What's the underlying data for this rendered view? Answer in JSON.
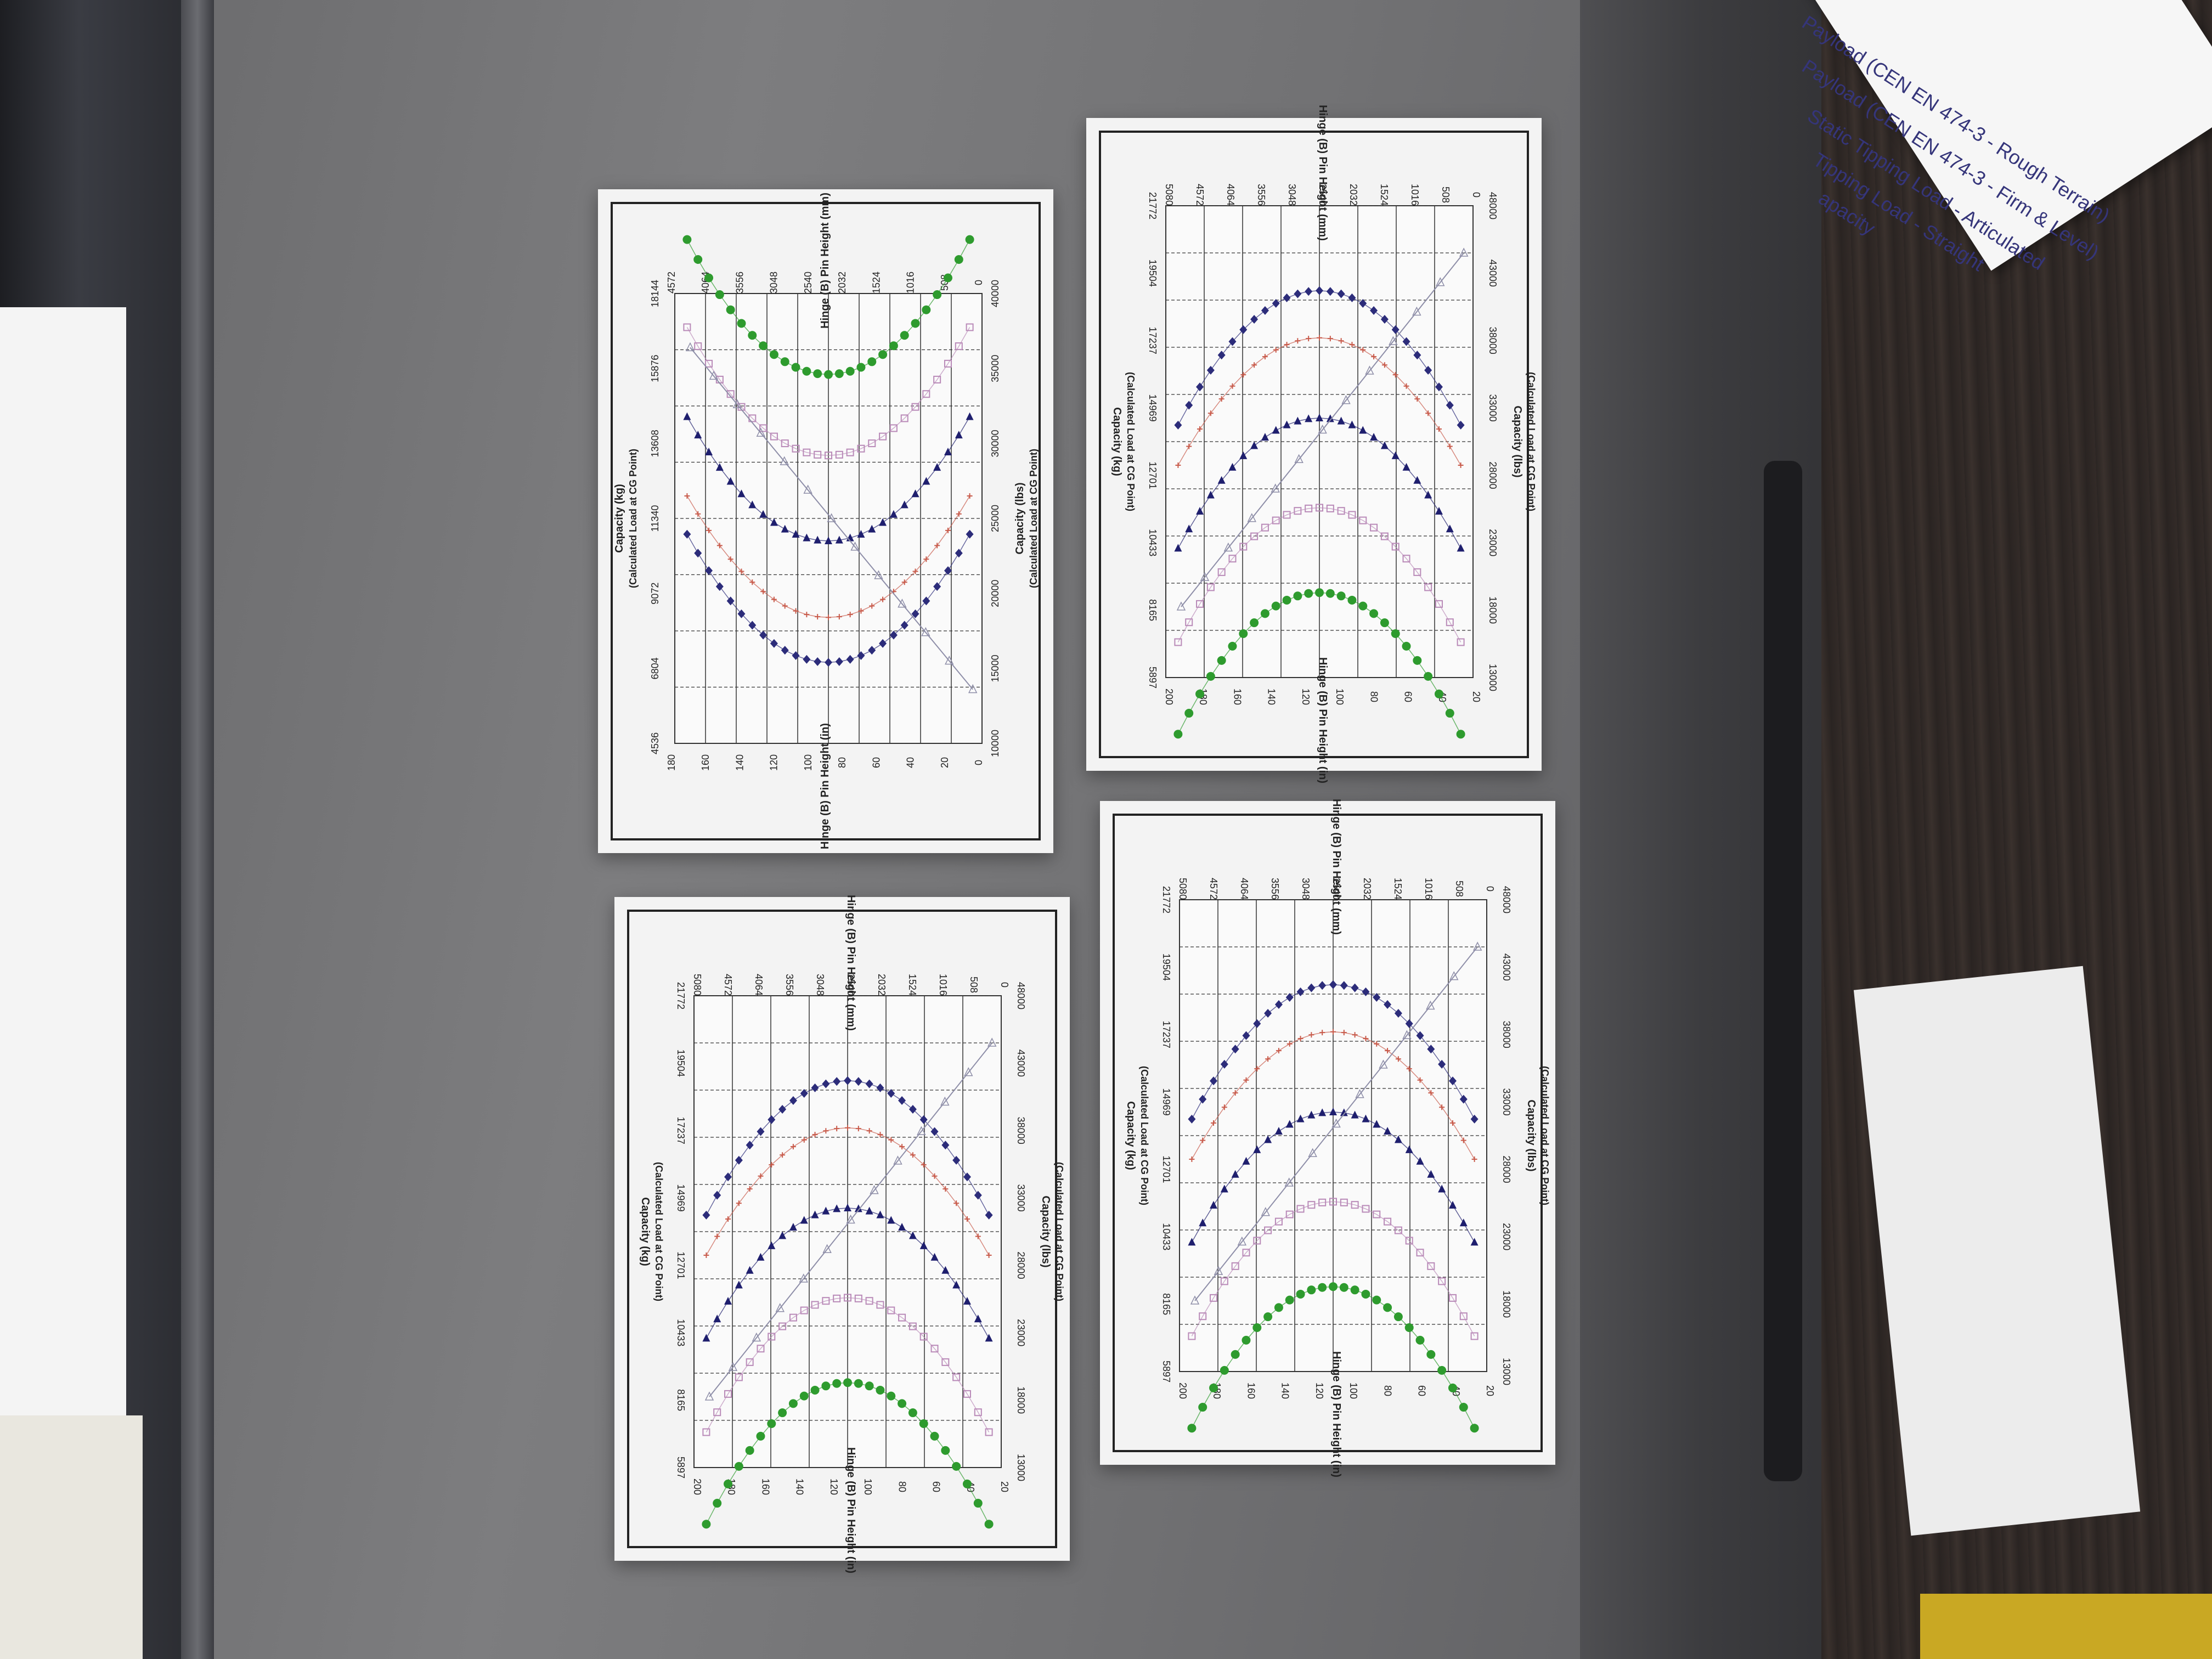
{
  "notecard": {
    "lines": [
      "Payload (CEN EN 474-3 - Rough Terrain)",
      "Payload (CEN EN 474-3 - Firm & Level)",
      "Static Tipping Load - Articulated",
      "Tipping Load - Straight",
      "apacity"
    ]
  },
  "chart_labels": {
    "top_kg_title": "Capacity (kg)",
    "top_kg_sub": "(Calculated Load at CG Point)",
    "bottom_lbs_title": "Capacity (lbs)",
    "bottom_lbs_sub": "(Calculated Load at CG Point)",
    "left_in": "Hinge (B) Pin Height (in)",
    "right_mm": "Hinge (B) Pin Height (mm)",
    "kg_ticks": [
      "5897",
      "8165",
      "10433",
      "12701",
      "14969",
      "17237",
      "19504",
      "21772"
    ],
    "kg_ticks_alt": [
      "4536",
      "6804",
      "9072",
      "11340",
      "13608",
      "15876",
      "18144"
    ],
    "lbs_ticks": [
      "13000",
      "18000",
      "23000",
      "28000",
      "33000",
      "38000",
      "43000",
      "48000"
    ],
    "lbs_ticks_alt": [
      "10000",
      "15000",
      "20000",
      "25000",
      "30000",
      "35000",
      "40000"
    ],
    "in_ticks": [
      "20",
      "40",
      "60",
      "80",
      "100",
      "120",
      "140",
      "160",
      "180",
      "200"
    ],
    "in_ticks_alt": [
      "0",
      "20",
      "40",
      "60",
      "80",
      "100",
      "120",
      "140",
      "160",
      "180"
    ],
    "mm_ticks": [
      "0",
      "508",
      "1016",
      "1524",
      "2032",
      "2540",
      "3048",
      "3556",
      "4064",
      "4572",
      "5080"
    ],
    "mm_ticks_alt": [
      "0",
      "508",
      "1016",
      "1524",
      "2032",
      "2540",
      "3048",
      "3556",
      "4064",
      "4572"
    ]
  },
  "colors": {
    "payload_rough": "#2c2c7a",
    "payload_firm": "#c85a4a",
    "static_articulated": "#1f1f6e",
    "static_straight": "#b98ab8",
    "capacity": "#2e9b2e",
    "tipping_line": "#8e8ea8"
  }
}
